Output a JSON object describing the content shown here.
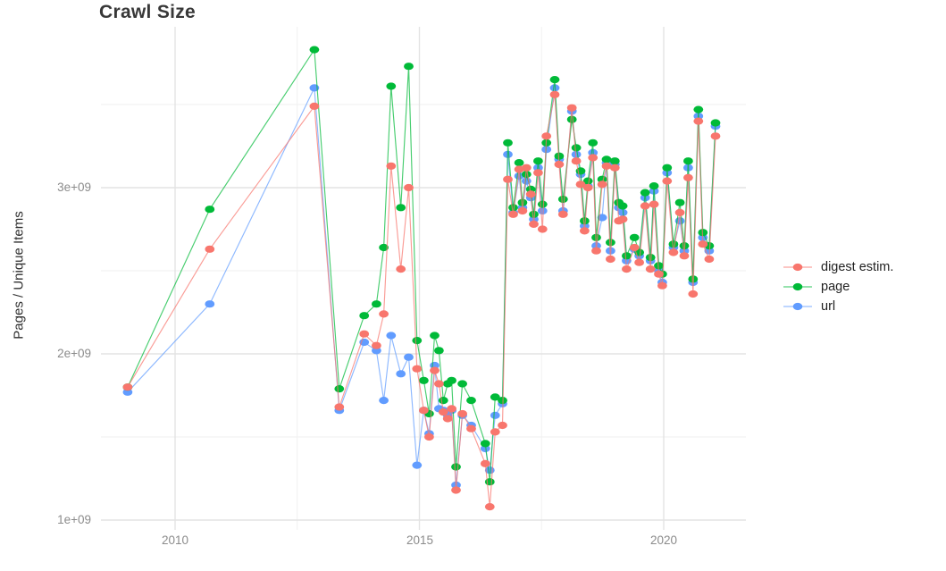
{
  "page": {
    "title": "Crawl Size"
  },
  "yaxis": {
    "label": "Pages / Unique Items",
    "ticks": [
      "1e+09",
      "2e+09",
      "3e+09"
    ],
    "tick_values": [
      1,
      2,
      3
    ]
  },
  "xaxis": {
    "ticks": [
      "2010",
      "2015",
      "2020"
    ],
    "tick_values": [
      2010,
      2015,
      2020
    ]
  },
  "legend": {
    "position": "right"
  },
  "chart_data": {
    "type": "line",
    "title": "Crawl Size",
    "xlabel": "",
    "ylabel": "Pages / Unique Items",
    "x_unit": "decimal year (crawl date)",
    "y_unit": "items, value shown in units of 1e9 (billions)",
    "xlim": [
      2008.45,
      2021.7
    ],
    "ylim": [
      0.94,
      3.97
    ],
    "grid": {
      "x_major": [
        2010,
        2015,
        2020
      ],
      "x_minor": [
        2012.5,
        2017.5
      ],
      "y_major": [
        1,
        2,
        3
      ],
      "y_minor": [
        1.5,
        2.5,
        3.5
      ]
    },
    "legend_position": "right",
    "marker": "point",
    "x": [
      2009.03,
      2010.71,
      2012.85,
      2013.36,
      2013.87,
      2014.12,
      2014.27,
      2014.42,
      2014.62,
      2014.78,
      2014.95,
      2015.09,
      2015.2,
      2015.31,
      2015.4,
      2015.49,
      2015.58,
      2015.66,
      2015.75,
      2015.88,
      2016.06,
      2016.35,
      2016.44,
      2016.55,
      2016.7,
      2016.81,
      2016.92,
      2017.04,
      2017.11,
      2017.19,
      2017.28,
      2017.34,
      2017.43,
      2017.52,
      2017.6,
      2017.77,
      2017.86,
      2017.94,
      2018.12,
      2018.21,
      2018.3,
      2018.38,
      2018.45,
      2018.55,
      2018.62,
      2018.74,
      2018.83,
      2018.91,
      2019.0,
      2019.08,
      2019.16,
      2019.24,
      2019.4,
      2019.5,
      2019.62,
      2019.73,
      2019.8,
      2019.9,
      2019.97,
      2020.07,
      2020.2,
      2020.33,
      2020.42,
      2020.5,
      2020.6,
      2020.71,
      2020.8,
      2020.93,
      2021.06
    ],
    "series": [
      {
        "name": "digest estim.",
        "color": "#f8766d",
        "values": [
          1.8,
          2.63,
          3.49,
          1.68,
          2.12,
          2.05,
          2.24,
          3.13,
          2.51,
          3.0,
          1.91,
          1.66,
          1.5,
          1.9,
          1.82,
          1.65,
          1.61,
          1.67,
          1.18,
          1.64,
          1.55,
          1.34,
          1.08,
          1.53,
          1.57,
          3.05,
          2.84,
          3.11,
          2.86,
          3.12,
          2.96,
          2.78,
          3.09,
          2.75,
          3.31,
          3.56,
          3.14,
          2.84,
          3.48,
          3.16,
          3.02,
          2.74,
          3.0,
          3.18,
          2.62,
          3.02,
          3.13,
          2.57,
          3.12,
          2.8,
          2.81,
          2.51,
          2.64,
          2.55,
          2.89,
          2.51,
          2.9,
          2.48,
          2.41,
          3.04,
          2.61,
          2.85,
          2.59,
          3.06,
          2.36,
          3.4,
          2.66,
          2.57,
          3.31
        ]
      },
      {
        "name": "page",
        "color": "#00ba38",
        "values": [
          1.8,
          2.87,
          3.83,
          1.79,
          2.23,
          2.3,
          2.64,
          3.61,
          2.88,
          3.73,
          2.08,
          1.84,
          1.64,
          2.11,
          2.02,
          1.72,
          1.82,
          1.84,
          1.32,
          1.82,
          1.72,
          1.46,
          1.23,
          1.74,
          1.72,
          3.27,
          2.88,
          3.15,
          2.91,
          3.08,
          2.99,
          2.84,
          3.16,
          2.9,
          3.27,
          3.65,
          3.19,
          2.93,
          3.41,
          3.24,
          3.1,
          2.8,
          3.04,
          3.27,
          2.7,
          3.05,
          3.17,
          2.67,
          3.16,
          2.91,
          2.89,
          2.59,
          2.7,
          2.61,
          2.97,
          2.58,
          3.01,
          2.53,
          2.48,
          3.12,
          2.66,
          2.91,
          2.65,
          3.16,
          2.45,
          3.47,
          2.73,
          2.65,
          3.39
        ]
      },
      {
        "name": "url",
        "color": "#619cff",
        "values": [
          1.77,
          2.3,
          3.6,
          1.66,
          2.07,
          2.02,
          1.72,
          2.11,
          1.88,
          1.98,
          1.33,
          1.66,
          1.52,
          1.93,
          1.67,
          1.66,
          1.63,
          1.66,
          1.21,
          1.63,
          1.57,
          1.43,
          1.3,
          1.63,
          1.7,
          3.2,
          2.85,
          3.07,
          2.88,
          3.04,
          2.94,
          2.81,
          3.12,
          2.86,
          3.23,
          3.6,
          3.17,
          2.86,
          3.46,
          3.2,
          3.08,
          2.77,
          3.01,
          3.21,
          2.65,
          2.82,
          3.15,
          2.62,
          3.14,
          2.88,
          2.85,
          2.56,
          2.63,
          2.59,
          2.94,
          2.56,
          2.98,
          2.5,
          2.43,
          3.09,
          2.64,
          2.8,
          2.62,
          3.12,
          2.43,
          3.43,
          2.7,
          2.62,
          3.37
        ]
      }
    ]
  }
}
